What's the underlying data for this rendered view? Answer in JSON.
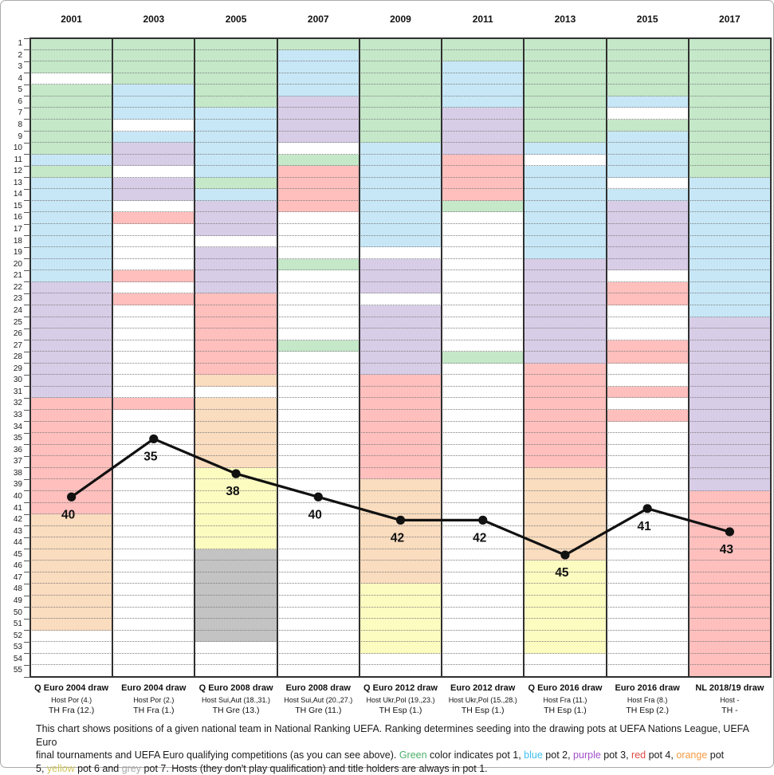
{
  "chart_data": {
    "type": "line",
    "title": "",
    "x": [
      "2001",
      "2003",
      "2005",
      "2007",
      "2009",
      "2011",
      "2013",
      "2015",
      "2017"
    ],
    "values": [
      40,
      35,
      38,
      40,
      42,
      42,
      45,
      41,
      43
    ],
    "point_labels": [
      "40",
      "35",
      "38",
      "40",
      "42",
      "42",
      "45",
      "41",
      "43"
    ],
    "ylim": [
      1,
      55
    ],
    "row_axis": {
      "from": 1,
      "to": 55
    },
    "grid": "dotted horizontal line per ranking row",
    "legend_position": "none",
    "series_color": "#111111",
    "pot_colors": {
      "g": "#c4e8c8",
      "b": "#c7e7f7",
      "p": "#d8cde7",
      "r": "#ffbfbd",
      "o": "#fadcbe",
      "y": "#fdfcc0",
      "e": "#c3c3c3",
      "w": "#ffffff"
    },
    "pot_meaning": {
      "g": "pot 1 (green)",
      "b": "pot 2 (blue)",
      "p": "pot 3 (purple)",
      "r": "pot 4 (red)",
      "o": "pot 5 (orange)",
      "y": "pot 6 (yellow)",
      "e": "pot 7 (grey)",
      "w": "not in draw"
    },
    "columns": [
      {
        "year": "2001",
        "bands": "gggwggggggbgbbbbbbbbbpppppppppprrrrrrrrrroooooooooowwww",
        "footer": [
          "Q Euro 2004 draw",
          "Host Por (4.)",
          "TH Fra (12.)"
        ]
      },
      {
        "year": "2003",
        "bands": "ggggbbbwbppwppwrwwwwrwrwwwwwwwwrwwwwwwwwwwwwwwwwwwwwwww",
        "footer": [
          "Euro 2004 draw",
          "Host Por (2.)",
          "TH Fra (1.)"
        ]
      },
      {
        "year": "2005",
        "bands": "ggggggbbbbbbgbpppwpppprrrrrrrowooooooyyyyyyyeeeeeeeewww",
        "footer": [
          "Q Euro 2008 draw",
          "Host Sui,Aut (18.,31.)",
          "TH Gre (13.)"
        ]
      },
      {
        "year": "2007",
        "bands": "gbbbbppppwgrrrrwwwwgwwwwwwgwwwwwwwwwwwwwwwwwwwwwwwwwwww",
        "footer": [
          "Euro 2008 draw",
          "Host Sui,Aut (20.,27.)",
          "TH Gre (11.)"
        ]
      },
      {
        "year": "2009",
        "bands": "gggggggggbbbbbbbbbwpppwpppppprrrrrrrrroooooooooyyyyyyww",
        "footer": [
          "Q Euro 2012 draw",
          "Host Ukr,Pol (19.,23.)",
          "TH Esp (1.)"
        ]
      },
      {
        "year": "2011",
        "bands": "ggbbbbpppprrrrgwwwwwwwwwwwwgwwwwwwwwwwwwwwwwwwwwwwwwwww",
        "footer": [
          "Euro 2012 draw",
          "Host Ukr,Pol (15.,28.)",
          "TH Esp (1.)"
        ]
      },
      {
        "year": "2013",
        "bands": "gggggggggbwbbbbbbbbppppppppprrrrrrrrrooooooooyyyyyyyyw",
        "footer": [
          "Q Euro 2016 draw",
          "Host Fra (11.)",
          "TH Esp (1.)"
        ]
      },
      {
        "year": "2015",
        "bands": "gggggbwgbbbbwbppppppwrrwwwrrwwrwrwwwwwwwwwwwwwwwwwwwwww",
        "footer": [
          "Euro 2016 draw",
          "Host Fra (8.)",
          "TH Esp (2.)"
        ]
      },
      {
        "year": "2017",
        "bands": "ggggggggggggbbbbbbbbbbbbppppppppppppppprrrrrrrrrrrrrrrr",
        "footer": [
          "NL 2018/19 draw",
          "Host -",
          "TH -"
        ]
      }
    ]
  },
  "caption": {
    "segments": [
      {
        "t": "This chart shows positions of a given national team in National Ranking UEFA. Ranking determines seeding into the drawing pots at UEFA Nations League, UEFA Euro"
      },
      {
        "br": true
      },
      {
        "t": "final tournaments and UEFA Euro qualifying competitions (as you can see above). "
      },
      {
        "t": "Green",
        "c": "green"
      },
      {
        "t": " color indicates pot 1, "
      },
      {
        "t": "blue",
        "c": "blue"
      },
      {
        "t": " pot 2, "
      },
      {
        "t": "purple",
        "c": "purple"
      },
      {
        "t": " pot 3, "
      },
      {
        "t": "red",
        "c": "red"
      },
      {
        "t": " pot 4, "
      },
      {
        "t": "orange",
        "c": "orange"
      },
      {
        "t": " pot"
      },
      {
        "br": true
      },
      {
        "t": "5, "
      },
      {
        "t": "yellow",
        "c": "yellow"
      },
      {
        "t": " pot 6 and "
      },
      {
        "t": "grey",
        "c": "grey"
      },
      {
        "t": " pot 7. Hosts (they don't play qualification) and title holders are always in pot 1."
      }
    ],
    "word_colors": {
      "green": "#4daf6a",
      "blue": "#3fbff0",
      "purple": "#a050c8",
      "red": "#e04a42",
      "orange": "#f59b42",
      "yellow": "#d0c55c",
      "grey": "#a6a6a6"
    }
  }
}
